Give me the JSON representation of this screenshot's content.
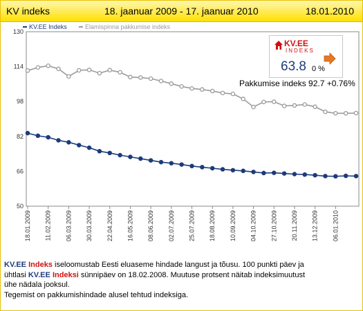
{
  "header": {
    "title": "KV indeks",
    "range": "18. jaanuar 2009 - 17. jaanuar 2010",
    "date": "18.01.2010"
  },
  "index_box": {
    "logo_main": "KV.EE",
    "logo_sub": "INDEKS",
    "value": "63.8",
    "change": "0 %",
    "pakkumise": "Pakkumise indeks 92.7  +0.76%"
  },
  "colors": {
    "dark_series": "#1c3b7a",
    "light_series": "#9a9a9a",
    "header": "#ffe000",
    "accent": "#d01010",
    "arrow": "#e87722"
  },
  "footer": {
    "p1_kv": "KV.EE",
    "p1_red": "Indeks",
    "p1_rest": " iseloomustab Eesti eluaseme hindade langust ja tõusu. 100 punkti päev ja",
    "p2_start": "ühtlasi ",
    "p2_kv": "KV.EE",
    "p2_red": "Indeksi",
    "p2_rest": " sünnipäev on 18.02.2008. Muutuse protsent näitab indeksimuutust",
    "p3": "ühe nädala jooksul.",
    "p4": "Tegemist on pakkumishindade alusel tehtud indeksiga."
  },
  "chart_data": {
    "type": "line",
    "ylim": [
      50,
      130
    ],
    "yticks": [
      50,
      66,
      82,
      98,
      114,
      130
    ],
    "grid": true,
    "legend_position": "top-left",
    "x_labels": [
      "18.01.2009",
      "11.02.2009",
      "06.03.2009",
      "30.03.2009",
      "22.04.2009",
      "16.05.2009",
      "08.06.2009",
      "02.07.2009",
      "25.07.2009",
      "18.08.2009",
      "10.09.2009",
      "04.10.2009",
      "27.10.2009",
      "20.11.2009",
      "13.12.2009",
      "06.01.2010"
    ],
    "series": [
      {
        "name": "KV.EE Indeks",
        "values": [
          83.5,
          82.3,
          81.6,
          80.2,
          79.3,
          78.0,
          76.8,
          75.2,
          74.4,
          73.4,
          72.6,
          71.8,
          71.0,
          70.2,
          69.7,
          69.1,
          68.4,
          67.9,
          67.4,
          66.9,
          66.5,
          66.2,
          65.7,
          65.2,
          65.3,
          65.0,
          64.7,
          64.5,
          64.2,
          63.8,
          63.7,
          63.9,
          63.8
        ]
      },
      {
        "name": "Elamispinna pakkumise indeks",
        "values": [
          112.2,
          113.6,
          114.4,
          113.0,
          109.5,
          112.3,
          112.5,
          111.0,
          112.4,
          111.4,
          109.2,
          109.0,
          108.5,
          107.4,
          106.2,
          104.9,
          104.0,
          103.5,
          102.8,
          101.9,
          101.5,
          99.2,
          95.5,
          97.8,
          97.9,
          96.0,
          96.2,
          96.6,
          95.6,
          93.3,
          92.6,
          92.6,
          92.7
        ]
      }
    ]
  }
}
